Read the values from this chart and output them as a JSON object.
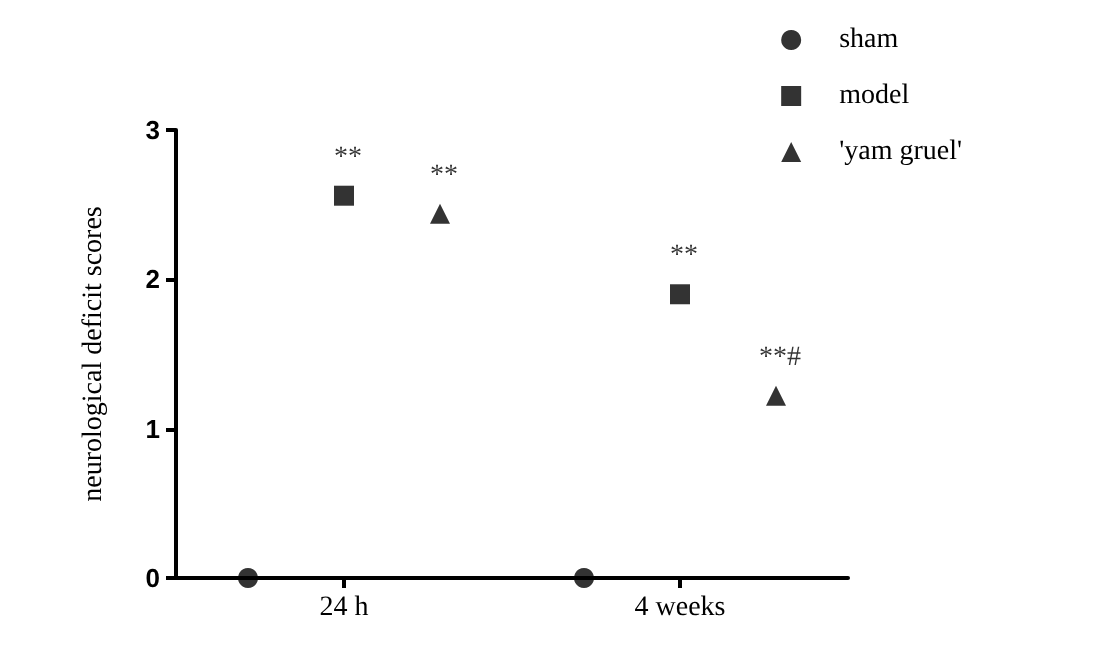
{
  "chart_data": {
    "type": "scatter",
    "ylabel": "neurological deficit scores",
    "categories": [
      "24 h",
      "4 weeks"
    ],
    "ylim": [
      0,
      3
    ],
    "yticks": [
      0,
      1,
      2,
      3
    ],
    "grid": false,
    "legend": "top right",
    "series": [
      {
        "name": "sham",
        "color": "#000000",
        "marker": "circle",
        "values": [
          0,
          0
        ]
      },
      {
        "name": "model",
        "color": "#000000",
        "marker": "square",
        "values": [
          2.56,
          1.9
        ],
        "value_labels": [
          "**",
          "**"
        ]
      },
      {
        "name": "'yam gruel'",
        "color": "#000000",
        "marker": "triangle",
        "values": [
          2.44,
          1.22
        ],
        "value_labels": [
          "**",
          "**#"
        ]
      }
    ]
  }
}
